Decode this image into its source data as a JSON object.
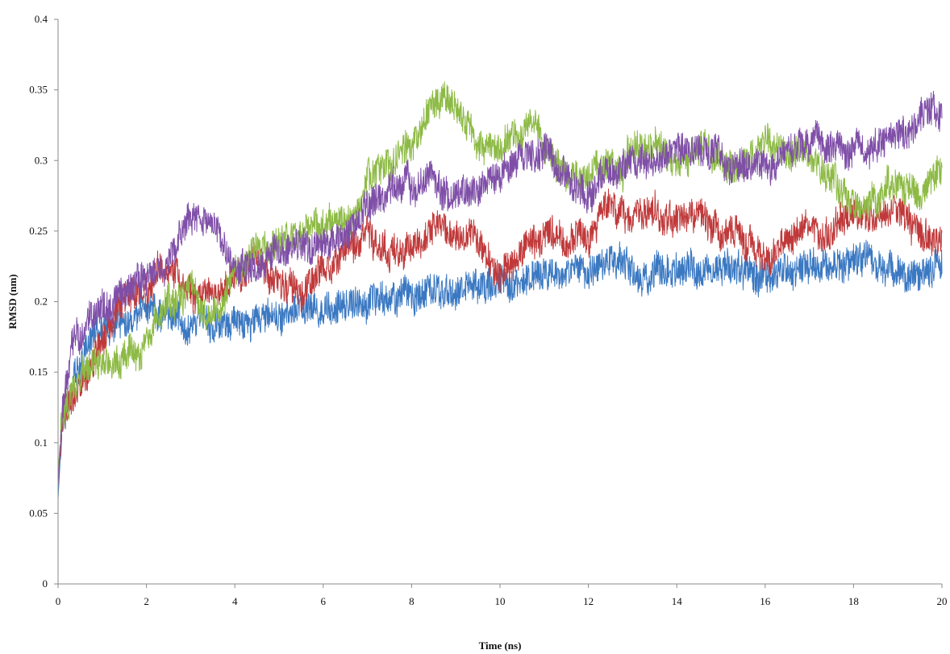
{
  "chart_data": {
    "type": "line",
    "title": "",
    "xlabel": "Time (ns)",
    "ylabel": "RMSD (nm)",
    "xlim": [
      0,
      20
    ],
    "ylim": [
      0,
      0.4
    ],
    "xticks": [
      0,
      2,
      4,
      6,
      8,
      10,
      12,
      14,
      16,
      18,
      20
    ],
    "yticks": [
      0,
      0.05,
      0.1,
      0.15,
      0.2,
      0.25,
      0.3,
      0.35,
      0.4
    ],
    "ytick_labels": [
      "0",
      "0.05",
      "0.1",
      "0.15",
      "0.2",
      "0.25",
      "0.3",
      "0.35",
      "0.4"
    ],
    "grid": false,
    "legend": "none",
    "series": [
      {
        "color": "#3a78c2",
        "x": [
          0,
          0.1,
          0.3,
          0.6,
          1,
          1.5,
          2,
          2.5,
          3,
          3.5,
          4,
          5,
          6,
          7,
          8,
          9,
          10,
          10.5,
          11,
          12,
          12.5,
          13,
          14,
          15,
          16,
          17,
          18,
          19,
          19.5,
          20
        ],
        "y": [
          0.06,
          0.12,
          0.14,
          0.165,
          0.18,
          0.19,
          0.195,
          0.19,
          0.185,
          0.185,
          0.182,
          0.19,
          0.198,
          0.2,
          0.205,
          0.21,
          0.212,
          0.215,
          0.222,
          0.222,
          0.23,
          0.22,
          0.22,
          0.225,
          0.218,
          0.225,
          0.23,
          0.222,
          0.212,
          0.228
        ]
      },
      {
        "color": "#c0393a",
        "x": [
          0,
          0.1,
          0.3,
          0.6,
          1,
          1.5,
          2,
          2.5,
          3,
          3.5,
          4,
          4.5,
          5,
          5.5,
          6,
          6.5,
          7,
          7.5,
          8,
          8.5,
          9,
          9.5,
          10,
          10.5,
          11,
          11.5,
          12,
          12.5,
          13,
          13.5,
          14,
          14.5,
          15,
          15.5,
          16,
          16.5,
          17,
          17.5,
          18,
          18.5,
          19,
          19.5,
          20
        ],
        "y": [
          0.07,
          0.12,
          0.13,
          0.14,
          0.17,
          0.2,
          0.21,
          0.22,
          0.21,
          0.205,
          0.215,
          0.23,
          0.215,
          0.21,
          0.225,
          0.24,
          0.245,
          0.235,
          0.24,
          0.255,
          0.25,
          0.245,
          0.22,
          0.232,
          0.245,
          0.245,
          0.25,
          0.272,
          0.262,
          0.265,
          0.255,
          0.262,
          0.25,
          0.245,
          0.235,
          0.245,
          0.255,
          0.252,
          0.262,
          0.258,
          0.265,
          0.25,
          0.24
        ]
      },
      {
        "color": "#8dba45",
        "x": [
          0,
          0.1,
          0.3,
          0.6,
          1,
          1.5,
          2,
          2.5,
          3,
          3.5,
          4,
          4.5,
          5,
          5.5,
          6,
          6.5,
          6.8,
          7,
          7.5,
          8,
          8.5,
          8.8,
          9,
          9.5,
          10,
          10.5,
          10.8,
          11,
          11.5,
          12,
          12.5,
          13,
          13.5,
          14,
          14.5,
          15,
          15.5,
          16,
          16.5,
          17,
          17.5,
          18,
          18.5,
          19,
          19.5,
          20
        ],
        "y": [
          0.08,
          0.12,
          0.135,
          0.15,
          0.16,
          0.16,
          0.17,
          0.2,
          0.21,
          0.19,
          0.22,
          0.24,
          0.24,
          0.25,
          0.26,
          0.255,
          0.26,
          0.29,
          0.3,
          0.31,
          0.34,
          0.345,
          0.335,
          0.31,
          0.305,
          0.32,
          0.33,
          0.31,
          0.285,
          0.29,
          0.295,
          0.305,
          0.31,
          0.3,
          0.31,
          0.3,
          0.3,
          0.31,
          0.305,
          0.305,
          0.285,
          0.27,
          0.275,
          0.282,
          0.28,
          0.29
        ]
      },
      {
        "color": "#7f4fa8",
        "x": [
          0,
          0.1,
          0.3,
          0.6,
          1,
          1.5,
          2,
          2.5,
          2.8,
          3,
          3.5,
          4,
          4.5,
          5,
          5.5,
          6,
          6.5,
          7,
          7.5,
          8,
          8.5,
          9,
          9.5,
          10,
          10.5,
          11,
          11.5,
          12,
          12.5,
          13,
          13.5,
          14,
          14.5,
          15,
          15.5,
          16,
          16.5,
          17,
          17.5,
          18,
          18.5,
          19,
          19.5,
          19.8,
          20
        ],
        "y": [
          0.07,
          0.13,
          0.16,
          0.18,
          0.195,
          0.205,
          0.215,
          0.225,
          0.25,
          0.26,
          0.255,
          0.225,
          0.23,
          0.235,
          0.24,
          0.24,
          0.245,
          0.27,
          0.28,
          0.285,
          0.28,
          0.275,
          0.28,
          0.29,
          0.3,
          0.305,
          0.29,
          0.28,
          0.295,
          0.3,
          0.3,
          0.31,
          0.31,
          0.3,
          0.295,
          0.29,
          0.305,
          0.315,
          0.31,
          0.305,
          0.315,
          0.315,
          0.325,
          0.34,
          0.335
        ]
      }
    ]
  }
}
